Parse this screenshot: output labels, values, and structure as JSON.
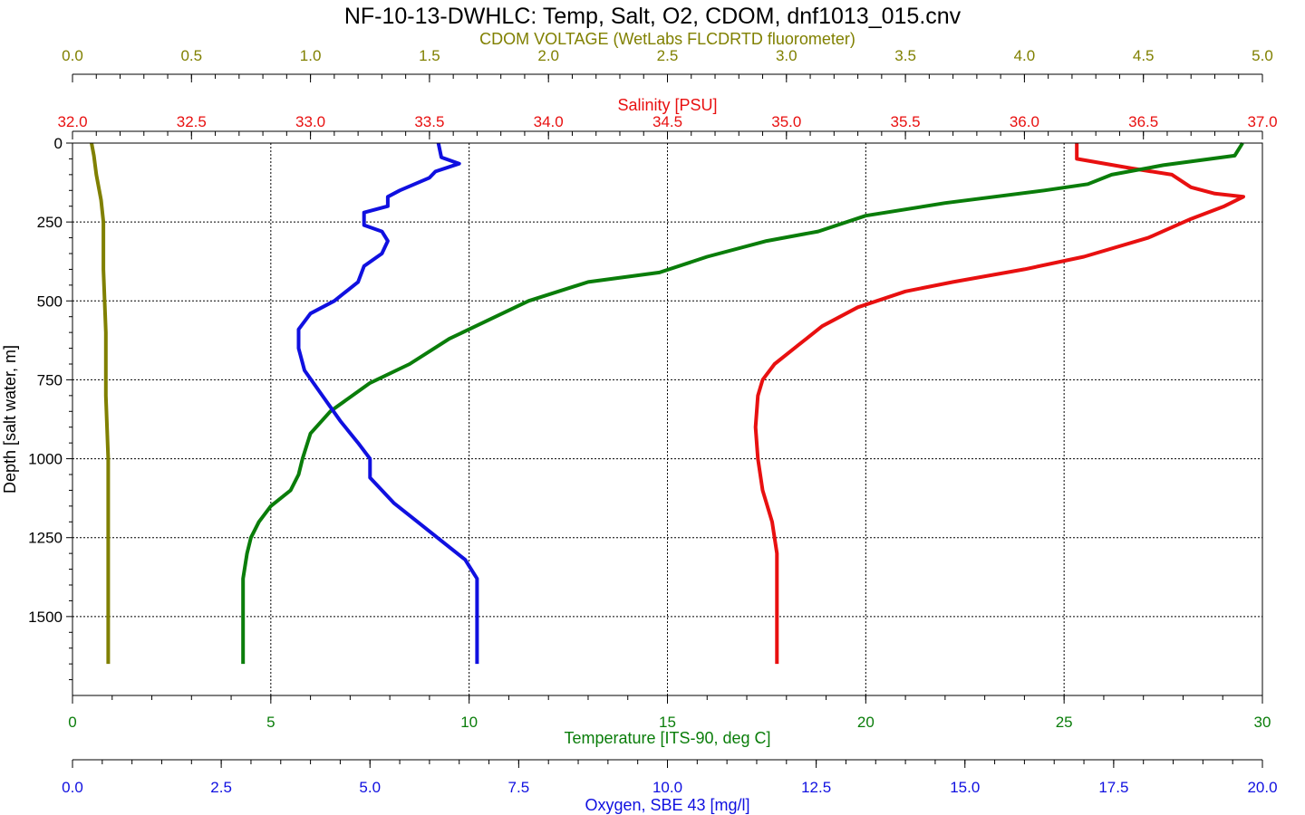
{
  "chart_data": {
    "type": "line",
    "title": "NF-10-13-DWHLC: Temp, Salt, O2, CDOM, dnf1013_015.cnv",
    "y_axis": {
      "label": "Depth [salt water, m]",
      "range": [
        0,
        1750
      ],
      "reversed": true,
      "ticks": [
        0,
        250,
        500,
        750,
        1000,
        1250,
        1500
      ]
    },
    "grid": true,
    "x_axes": [
      {
        "key": "cdom",
        "label": "CDOM VOLTAGE (WetLabs FLCDRTD fluorometer)",
        "position": "top",
        "color": "#808000",
        "range": [
          0.0,
          5.0
        ],
        "ticks": [
          "0.0",
          "0.5",
          "1.0",
          "1.5",
          "2.0",
          "2.5",
          "3.0",
          "3.5",
          "4.0",
          "4.5",
          "5.0"
        ]
      },
      {
        "key": "salinity",
        "label": "Salinity [PSU]",
        "position": "top",
        "color": "#e81010",
        "range": [
          32.0,
          37.0
        ],
        "ticks": [
          "32.0",
          "32.5",
          "33.0",
          "33.5",
          "34.0",
          "34.5",
          "35.0",
          "35.5",
          "36.0",
          "36.5",
          "37.0"
        ]
      },
      {
        "key": "temperature",
        "label": "Temperature [ITS-90, deg C]",
        "position": "bottom",
        "color": "#0a7d0a",
        "range": [
          0,
          30
        ],
        "ticks": [
          "0",
          "5",
          "10",
          "15",
          "20",
          "25",
          "30"
        ]
      },
      {
        "key": "oxygen",
        "label": "Oxygen, SBE 43 [mg/l]",
        "position": "bottom",
        "color": "#1010e0",
        "range": [
          0.0,
          20.0
        ],
        "ticks": [
          "0.0",
          "2.5",
          "5.0",
          "7.5",
          "10.0",
          "12.5",
          "15.0",
          "17.5",
          "20.0"
        ]
      }
    ],
    "series": [
      {
        "axis": "cdom",
        "color": "#808000",
        "points": [
          [
            0.08,
            0
          ],
          [
            0.09,
            40
          ],
          [
            0.1,
            100
          ],
          [
            0.12,
            180
          ],
          [
            0.13,
            250
          ],
          [
            0.13,
            400
          ],
          [
            0.14,
            600
          ],
          [
            0.14,
            800
          ],
          [
            0.15,
            1000
          ],
          [
            0.15,
            1200
          ],
          [
            0.15,
            1400
          ],
          [
            0.15,
            1650
          ]
        ]
      },
      {
        "axis": "salinity",
        "color": "#e81010",
        "points": [
          [
            36.22,
            0
          ],
          [
            36.22,
            50
          ],
          [
            36.45,
            80
          ],
          [
            36.62,
            100
          ],
          [
            36.7,
            140
          ],
          [
            36.8,
            160
          ],
          [
            36.92,
            170
          ],
          [
            36.84,
            200
          ],
          [
            36.7,
            240
          ],
          [
            36.52,
            300
          ],
          [
            36.25,
            360
          ],
          [
            36.0,
            400
          ],
          [
            35.7,
            440
          ],
          [
            35.5,
            470
          ],
          [
            35.3,
            520
          ],
          [
            35.15,
            580
          ],
          [
            35.05,
            640
          ],
          [
            34.95,
            700
          ],
          [
            34.9,
            750
          ],
          [
            34.88,
            800
          ],
          [
            34.87,
            900
          ],
          [
            34.88,
            1000
          ],
          [
            34.9,
            1100
          ],
          [
            34.94,
            1200
          ],
          [
            34.96,
            1300
          ],
          [
            34.96,
            1400
          ],
          [
            34.96,
            1500
          ],
          [
            34.96,
            1650
          ]
        ]
      },
      {
        "axis": "temperature",
        "color": "#0a7d0a",
        "points": [
          [
            29.5,
            0
          ],
          [
            29.3,
            40
          ],
          [
            27.5,
            70
          ],
          [
            26.2,
            100
          ],
          [
            25.6,
            130
          ],
          [
            24.5,
            150
          ],
          [
            22.0,
            190
          ],
          [
            20.0,
            230
          ],
          [
            18.8,
            280
          ],
          [
            17.5,
            310
          ],
          [
            16.0,
            360
          ],
          [
            14.8,
            410
          ],
          [
            13.0,
            440
          ],
          [
            11.5,
            500
          ],
          [
            10.5,
            560
          ],
          [
            9.5,
            620
          ],
          [
            8.5,
            700
          ],
          [
            7.5,
            760
          ],
          [
            6.5,
            850
          ],
          [
            6.0,
            920
          ],
          [
            5.8,
            1000
          ],
          [
            5.7,
            1050
          ],
          [
            5.5,
            1100
          ],
          [
            5.0,
            1150
          ],
          [
            4.7,
            1200
          ],
          [
            4.5,
            1250
          ],
          [
            4.4,
            1300
          ],
          [
            4.3,
            1380
          ],
          [
            4.3,
            1500
          ],
          [
            4.3,
            1650
          ]
        ]
      },
      {
        "axis": "oxygen",
        "color": "#1010e0",
        "points": [
          [
            6.15,
            0
          ],
          [
            6.2,
            45
          ],
          [
            6.5,
            65
          ],
          [
            6.1,
            90
          ],
          [
            6.0,
            110
          ],
          [
            5.5,
            150
          ],
          [
            5.3,
            170
          ],
          [
            5.3,
            200
          ],
          [
            4.9,
            220
          ],
          [
            4.9,
            260
          ],
          [
            5.2,
            280
          ],
          [
            5.3,
            310
          ],
          [
            5.2,
            350
          ],
          [
            4.9,
            390
          ],
          [
            4.8,
            440
          ],
          [
            4.4,
            500
          ],
          [
            4.0,
            540
          ],
          [
            3.8,
            590
          ],
          [
            3.8,
            650
          ],
          [
            3.9,
            720
          ],
          [
            4.2,
            800
          ],
          [
            4.5,
            880
          ],
          [
            4.8,
            950
          ],
          [
            5.0,
            1000
          ],
          [
            5.0,
            1060
          ],
          [
            5.4,
            1140
          ],
          [
            5.8,
            1200
          ],
          [
            6.2,
            1260
          ],
          [
            6.6,
            1320
          ],
          [
            6.8,
            1380
          ],
          [
            6.8,
            1500
          ],
          [
            6.8,
            1650
          ]
        ]
      }
    ]
  }
}
